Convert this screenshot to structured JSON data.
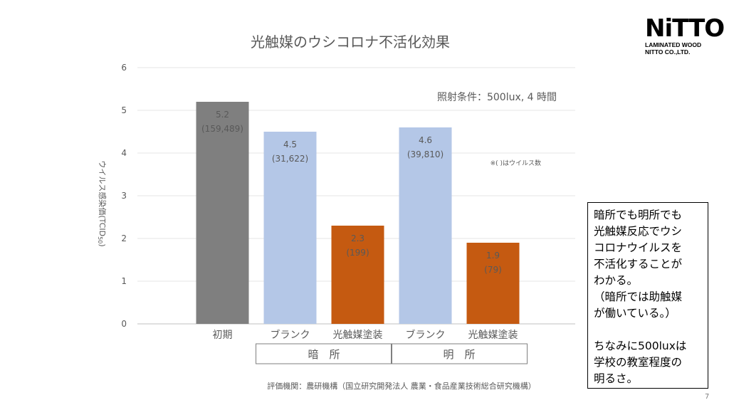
{
  "chart_data": {
    "type": "bar",
    "title": "光触媒のウシコロナ不活化効果",
    "ylabel": "ウイルス感染価(TCID",
    "ylabel_sub": "50",
    "ylabel_end": ")",
    "ylim": [
      0,
      6
    ],
    "yticks": [
      "0",
      "1",
      "2",
      "3",
      "4",
      "5",
      "6"
    ],
    "grid": true,
    "categories": [
      "初期",
      "ブランク",
      "光触媒塗装",
      "ブランク",
      "光触媒塗装"
    ],
    "values": [
      5.2,
      4.5,
      2.3,
      4.6,
      1.9
    ],
    "value_labels": [
      "5.2",
      "4.5",
      "2.3",
      "4.6",
      "1.9"
    ],
    "virus_counts": [
      "(159,489)",
      "(31,622)",
      "(199)",
      "(39,810)",
      "(79)"
    ],
    "bar_colors": [
      "#7f7f7f",
      "#b4c7e7",
      "#c55a11",
      "#b4c7e7",
      "#c55a11"
    ],
    "groups": [
      {
        "label": "暗　所",
        "categories": [
          1,
          2
        ]
      },
      {
        "label": "明　所",
        "categories": [
          3,
          4
        ]
      }
    ],
    "annotations": {
      "condition": "照射条件：500lux, 4 時間",
      "note": "※( )はウイルス数",
      "source": "評価機関：農研機構（国立研究開発法人 農業・食品産業技術総合研究機構）"
    }
  },
  "logo": {
    "mark": "NiTTO",
    "line1": "LAMINATED WOOD",
    "line2": "NITTO CO.,LTD."
  },
  "sidebox": {
    "lines": [
      "暗所でも明所でも",
      "光触媒反応でウシ",
      "コロナウイルスを",
      "不活化することが",
      "わかる。",
      "（暗所では助触媒",
      "が働いている。）",
      "",
      "ちなみに500luxは",
      "学校の教室程度の",
      "明るさ。"
    ]
  },
  "page_number": "7"
}
